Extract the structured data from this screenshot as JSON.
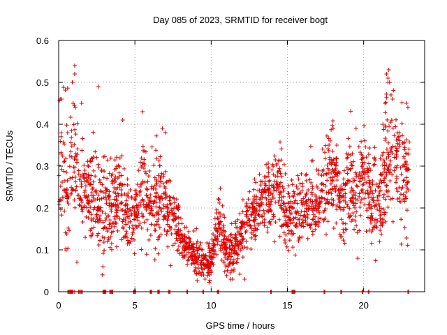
{
  "chart_data": {
    "type": "scatter",
    "title": "Day 085 of 2023, SRMTID for receiver bogt",
    "xlabel": "GPS time / hours",
    "ylabel": "SRMTID / TECUs",
    "xlim": [
      0,
      24
    ],
    "ylim": [
      0,
      0.6
    ],
    "x_ticks": [
      0,
      5,
      10,
      15,
      20
    ],
    "x_tick_labels": [
      "0",
      "5",
      "10",
      "15",
      "20"
    ],
    "y_ticks": [
      0,
      0.1,
      0.2,
      0.3,
      0.4,
      0.5,
      0.6
    ],
    "y_tick_labels": [
      "0",
      "0.1",
      "0.2",
      "0.3",
      "0.4",
      "0.5",
      "0.6"
    ],
    "grid": true,
    "marker": "+",
    "color": "#e00000",
    "series": [
      {
        "name": "SRMTID",
        "profile_hours": [
          0.0,
          0.5,
          1.0,
          1.5,
          2.0,
          2.5,
          3.0,
          3.5,
          4.0,
          4.5,
          5.0,
          5.5,
          6.0,
          6.5,
          7.0,
          7.5,
          8.0,
          8.5,
          9.0,
          9.5,
          10.0,
          10.5,
          11.0,
          11.5,
          12.0,
          12.5,
          13.0,
          13.5,
          14.0,
          14.5,
          15.0,
          15.5,
          16.0,
          16.5,
          17.0,
          17.5,
          18.0,
          18.5,
          19.0,
          19.5,
          20.0,
          20.5,
          21.0,
          21.5,
          22.0,
          22.5,
          23.0
        ],
        "profile_mean": [
          0.33,
          0.28,
          0.32,
          0.22,
          0.24,
          0.22,
          0.2,
          0.19,
          0.24,
          0.17,
          0.17,
          0.26,
          0.2,
          0.22,
          0.21,
          0.18,
          0.14,
          0.1,
          0.08,
          0.08,
          0.07,
          0.17,
          0.09,
          0.1,
          0.14,
          0.17,
          0.2,
          0.22,
          0.25,
          0.24,
          0.17,
          0.2,
          0.2,
          0.21,
          0.2,
          0.25,
          0.29,
          0.2,
          0.25,
          0.22,
          0.28,
          0.23,
          0.2,
          0.33,
          0.32,
          0.3,
          0.25
        ],
        "profile_spread": [
          0.12,
          0.13,
          0.1,
          0.08,
          0.07,
          0.08,
          0.08,
          0.08,
          0.09,
          0.06,
          0.05,
          0.08,
          0.07,
          0.08,
          0.07,
          0.05,
          0.04,
          0.03,
          0.03,
          0.03,
          0.03,
          0.05,
          0.04,
          0.04,
          0.05,
          0.05,
          0.05,
          0.06,
          0.06,
          0.07,
          0.06,
          0.06,
          0.06,
          0.06,
          0.06,
          0.07,
          0.08,
          0.07,
          0.08,
          0.07,
          0.08,
          0.08,
          0.09,
          0.11,
          0.1,
          0.09,
          0.08
        ],
        "peaks": [
          {
            "hour": 1.05,
            "value": 0.54
          },
          {
            "hour": 1.05,
            "value": 0.52
          },
          {
            "hour": 0.9,
            "value": 0.5
          },
          {
            "hour": 0.95,
            "value": 0.45
          },
          {
            "hour": 1.1,
            "value": 0.44
          },
          {
            "hour": 1.5,
            "value": 0.45
          },
          {
            "hour": 2.6,
            "value": 0.49
          },
          {
            "hour": 0.1,
            "value": 0.46
          },
          {
            "hour": 0.2,
            "value": 0.46
          },
          {
            "hour": 5.5,
            "value": 0.43
          },
          {
            "hour": 4.2,
            "value": 0.41
          },
          {
            "hour": 6.8,
            "value": 0.39
          },
          {
            "hour": 7.0,
            "value": 0.38
          },
          {
            "hour": 21.5,
            "value": 0.52
          },
          {
            "hour": 21.6,
            "value": 0.51
          },
          {
            "hour": 21.65,
            "value": 0.53
          },
          {
            "hour": 21.7,
            "value": 0.5
          },
          {
            "hour": 21.8,
            "value": 0.47
          },
          {
            "hour": 21.9,
            "value": 0.46
          },
          {
            "hour": 21.4,
            "value": 0.45
          },
          {
            "hour": 22.8,
            "value": 0.45
          },
          {
            "hour": 22.9,
            "value": 0.44
          },
          {
            "hour": 18.0,
            "value": 0.39
          },
          {
            "hour": 19.5,
            "value": 0.39
          },
          {
            "hour": 2.9,
            "value": 0.06
          },
          {
            "hour": 9.6,
            "value": 0.03
          },
          {
            "hour": 9.5,
            "value": 0.04
          },
          {
            "hour": 11.4,
            "value": 0.03
          },
          {
            "hour": 12.2,
            "value": 0.03
          }
        ],
        "zero_hours": [
          0.6,
          0.65,
          0.7,
          0.75,
          0.8,
          0.85,
          0.9,
          0.95,
          1.05,
          1.3,
          1.35,
          1.45,
          1.5,
          1.55,
          2.9,
          2.95,
          3.0,
          3.05,
          3.1,
          3.35,
          3.4,
          3.45,
          3.5,
          3.55,
          4.9,
          4.95,
          5.0,
          5.05,
          6.0,
          6.05,
          6.1,
          6.5,
          6.55,
          6.6,
          7.2,
          7.25,
          7.3,
          8.4,
          8.45,
          9.45,
          9.5,
          10.4,
          10.45,
          10.5,
          13.9,
          13.95,
          15.3,
          15.35,
          15.4,
          15.45,
          15.5,
          17.4,
          17.45,
          18.5,
          18.55,
          19.9,
          19.95,
          20.3,
          20.35,
          22.9,
          22.95
        ]
      }
    ]
  }
}
